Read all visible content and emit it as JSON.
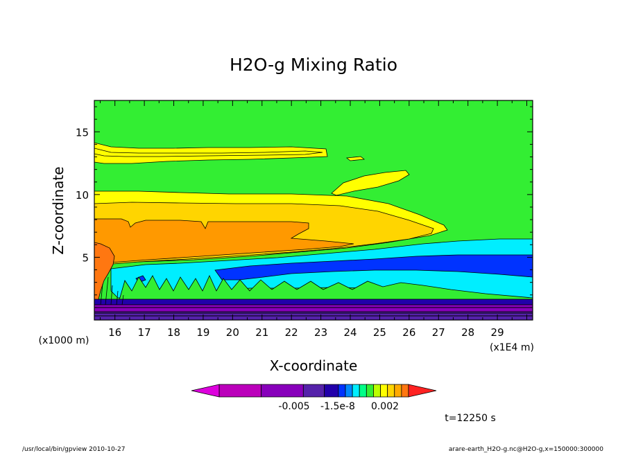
{
  "chart_data": {
    "type": "heatmap",
    "title": "H2O-g Mixing Ratio",
    "xlabel": "X-coordinate",
    "ylabel": "Z-coordinate",
    "x_unit_left": "(x1000 m)",
    "x_unit_right": "(x1E4 m)",
    "x_ticks": [
      "16",
      "17",
      "18",
      "19",
      "20",
      "21",
      "22",
      "23",
      "24",
      "25",
      "26",
      "27",
      "28",
      "29"
    ],
    "y_ticks": [
      "5",
      "10",
      "15"
    ],
    "xlim": [
      15.3,
      30.2
    ],
    "ylim": [
      0,
      17.5
    ],
    "colorbar": {
      "labels": [
        "-0.005",
        "-1.5e-8",
        "0.002"
      ],
      "colors": [
        "#dd00dd",
        "#bb00bb",
        "#8800bb",
        "#5522aa",
        "#2200aa",
        "#0033ff",
        "#0088ff",
        "#00eeff",
        "#00ff88",
        "#33ee33",
        "#bbff00",
        "#ffff00",
        "#ffd500",
        "#ffaa00",
        "#ff7711",
        "#ff2222"
      ]
    },
    "time_label": "t=12250 s",
    "colors": {
      "background_level": "#33ee33",
      "top_band": "#ffff00",
      "middle_band": "#ffd500",
      "warm_band": "#ff9900",
      "peak": "#ff7711",
      "cyan": "#00eeff",
      "blue": "#0033ff",
      "deep": "#2200aa",
      "purple": "#8800bb",
      "magenta": "#bb00bb"
    }
  },
  "footer": {
    "left": "/usr/local/bin/gpview  2010-10-27",
    "right": "arare-earth_H2O-g.nc@H2O-g,x=150000:300000"
  }
}
